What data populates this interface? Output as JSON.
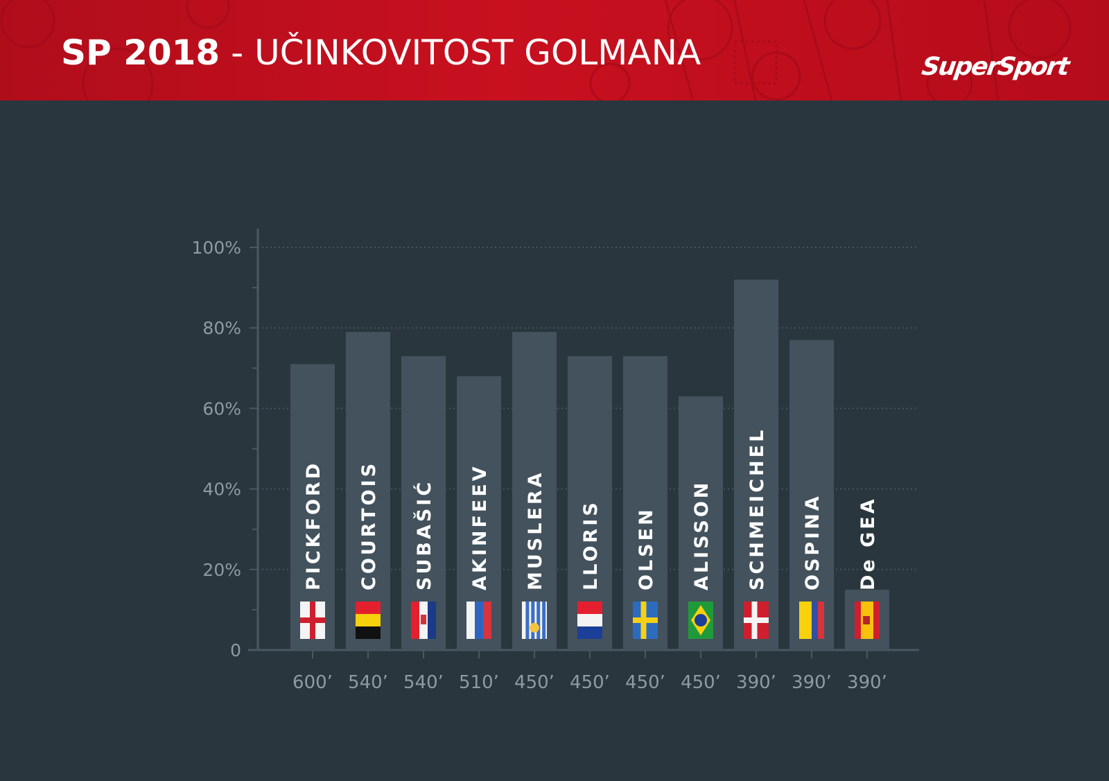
{
  "header": {
    "title_bold": "SP 2018",
    "title_rest": " - UČINKOVITOST GOLMANA",
    "logo": "SuperSport",
    "background": "#c8101f"
  },
  "chart_data": {
    "type": "bar",
    "title": "SP 2018 - UČINKOVITOST GOLMANA",
    "xlabel": "",
    "ylabel": "",
    "ylim": [
      0,
      100
    ],
    "y_ticks": [
      "0",
      "20%",
      "40%",
      "60%",
      "80%",
      "100%"
    ],
    "grid": true,
    "bar_color": "#43525d",
    "categories": [
      "PICKFORD",
      "COURTOIS",
      "SUBAŠIĆ",
      "AKINFEEV",
      "MUSLERA",
      "LLORIS",
      "OLSEN",
      "ALISSON",
      "SCHMEICHEL",
      "OSPINA",
      "De GEA"
    ],
    "minutes": [
      "600’",
      "540’",
      "540’",
      "510’",
      "450’",
      "450’",
      "450’",
      "450’",
      "390’",
      "390’",
      "390’"
    ],
    "flags": [
      "flag-england-icon",
      "flag-belgium-icon",
      "flag-croatia-icon",
      "flag-russia-icon",
      "flag-uruguay-icon",
      "flag-france-icon",
      "flag-sweden-icon",
      "flag-brazil-icon",
      "flag-denmark-icon",
      "flag-colombia-icon",
      "flag-spain-icon"
    ],
    "values": [
      71,
      79,
      73,
      68,
      79,
      73,
      73,
      63,
      92,
      77,
      15
    ]
  }
}
